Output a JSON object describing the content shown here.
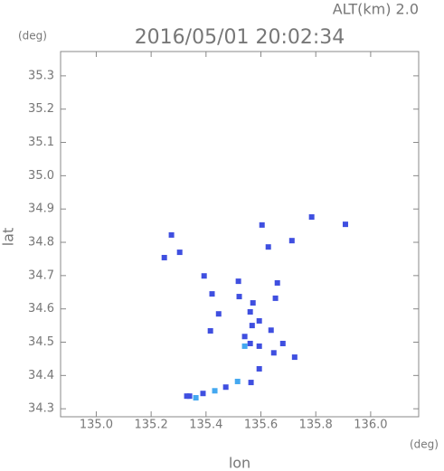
{
  "chart_data": {
    "type": "scatter",
    "title": "2016/05/01 20:02:34",
    "subtitle": "ALT(km) 2.0",
    "y_unit": "(deg)",
    "x_unit": "(deg)",
    "x_label": "lon",
    "y_label": "lat",
    "xlim": [
      134.87,
      136.175
    ],
    "ylim": [
      34.276,
      35.373
    ],
    "xticks": [
      {
        "value": 135,
        "label": "135.0"
      },
      135.2,
      135.4,
      135.6,
      135.8,
      {
        "value": 136,
        "label": "136.0"
      }
    ],
    "yticks": [
      34.3,
      34.4,
      34.5,
      34.6,
      34.7,
      34.8,
      34.9,
      {
        "value": 35,
        "label": "35.0"
      },
      35.1,
      35.2,
      35.3
    ],
    "series": [
      {
        "color": "#3f4fe0",
        "x": [
          135.274,
          135.304,
          135.248,
          135.785,
          135.908,
          135.604,
          135.713,
          135.627,
          135.393,
          135.518,
          135.66,
          135.521,
          135.422,
          135.653,
          135.571,
          135.446,
          135.561,
          135.594,
          135.568,
          135.416,
          135.541,
          135.637,
          135.561,
          135.594,
          135.68,
          135.647,
          135.723,
          135.594,
          135.564,
          135.472,
          135.389,
          135.34,
          135.33
        ],
        "values": [
          34.822,
          34.77,
          34.754,
          34.876,
          34.854,
          34.852,
          34.805,
          34.786,
          34.699,
          34.683,
          34.678,
          34.637,
          34.645,
          34.632,
          34.618,
          34.585,
          34.591,
          34.564,
          34.55,
          34.534,
          34.517,
          34.536,
          34.496,
          34.488,
          34.496,
          34.468,
          34.455,
          34.42,
          34.379,
          34.365,
          34.346,
          34.338,
          34.338
        ]
      },
      {
        "color": "#44a8f0",
        "x": [
          135.541,
          135.515,
          135.432,
          135.363
        ],
        "values": [
          34.488,
          34.382,
          34.354,
          34.333
        ]
      }
    ]
  }
}
